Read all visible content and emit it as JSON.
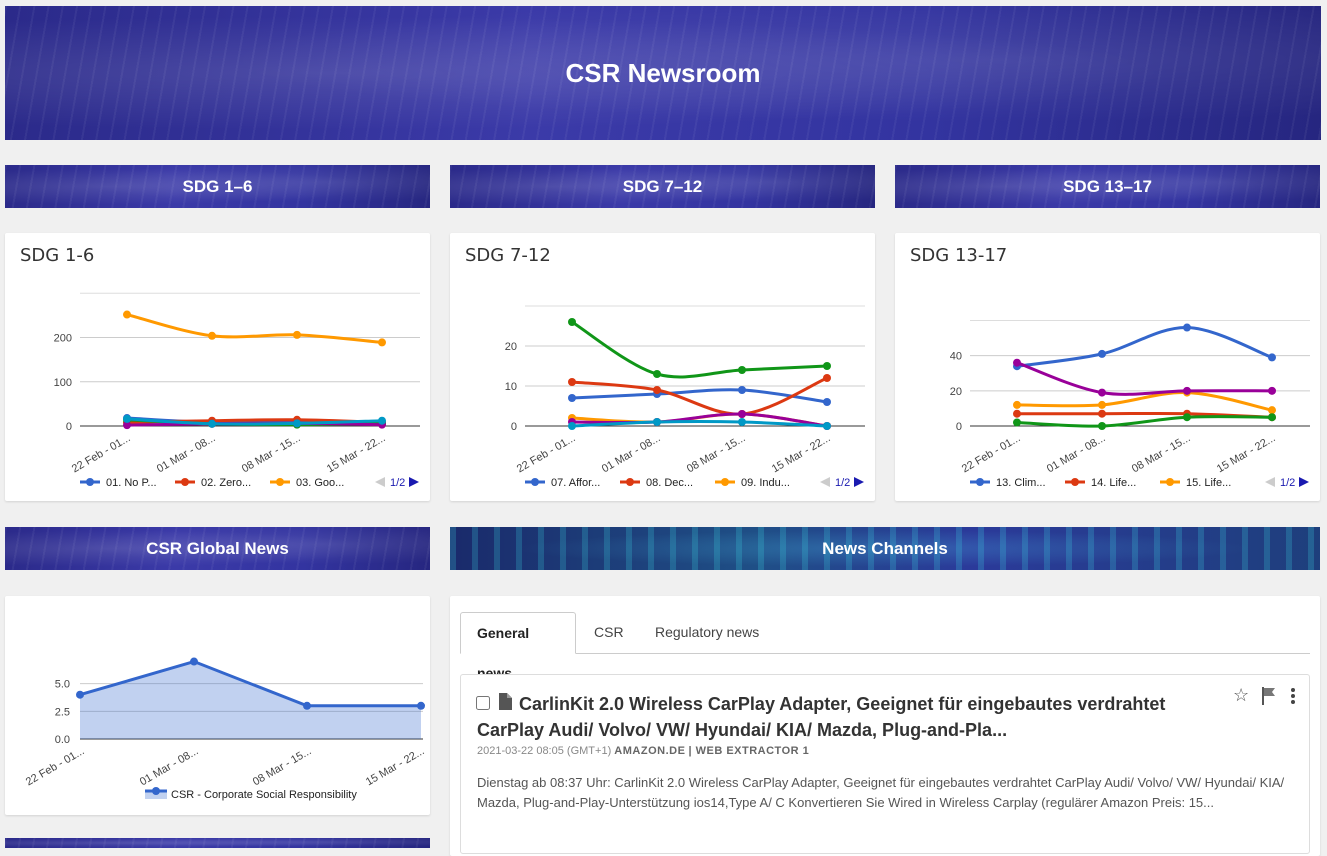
{
  "header": {
    "title": "CSR Newsroom"
  },
  "sections": {
    "sdg1": "SDG 1–6",
    "sdg2": "SDG 7–12",
    "sdg3": "SDG 13–17",
    "global": "CSR Global News",
    "channels": "News Channels"
  },
  "cards": {
    "c1": {
      "title": "SDG 1-6",
      "pager": "1/2"
    },
    "c2": {
      "title": "SDG 7-12",
      "pager": "1/2"
    },
    "c3": {
      "title": "SDG 13-17",
      "pager": "1/2"
    }
  },
  "chart_data": [
    {
      "type": "line",
      "title": "SDG 1-6",
      "categories": [
        "22 Feb - 01...",
        "01 Mar - 08...",
        "08 Mar - 15...",
        "15 Mar - 22..."
      ],
      "ylim": [
        0,
        260
      ],
      "yticks": [
        "0",
        "100",
        "200"
      ],
      "series": [
        {
          "name": "01. No P...",
          "color": "#3366cc",
          "values": [
            18,
            8,
            10,
            10
          ]
        },
        {
          "name": "02. Zero...",
          "color": "#dc3912",
          "values": [
            8,
            12,
            14,
            8
          ]
        },
        {
          "name": "03. Goo...",
          "color": "#ff9900",
          "values": [
            252,
            204,
            206,
            189
          ]
        },
        {
          "name": "",
          "color": "#109618",
          "values": [
            14,
            5,
            3,
            5
          ]
        },
        {
          "name": "",
          "color": "#990099",
          "values": [
            2,
            5,
            6,
            3
          ]
        },
        {
          "name": "",
          "color": "#0099c6",
          "values": [
            16,
            5,
            6,
            12
          ]
        }
      ]
    },
    {
      "type": "line",
      "title": "SDG 7-12",
      "categories": [
        "22 Feb - 01...",
        "01 Mar - 08...",
        "08 Mar - 15...",
        "15 Mar - 22..."
      ],
      "ylim": [
        0,
        28
      ],
      "yticks": [
        "0",
        "10",
        "20"
      ],
      "series": [
        {
          "name": "07. Affor...",
          "color": "#3366cc",
          "values": [
            7,
            8,
            9,
            6
          ]
        },
        {
          "name": "08. Dec...",
          "color": "#dc3912",
          "values": [
            11,
            9,
            3,
            12
          ]
        },
        {
          "name": "09. Indu...",
          "color": "#ff9900",
          "values": [
            2,
            1,
            3,
            0
          ]
        },
        {
          "name": "",
          "color": "#109618",
          "values": [
            26,
            13,
            14,
            15
          ]
        },
        {
          "name": "",
          "color": "#990099",
          "values": [
            1,
            1,
            3,
            0
          ]
        },
        {
          "name": "",
          "color": "#0099c6",
          "values": [
            0,
            1,
            1,
            0
          ]
        }
      ]
    },
    {
      "type": "line",
      "title": "SDG 13-17",
      "categories": [
        "22 Feb - 01...",
        "01 Mar - 08...",
        "08 Mar - 15...",
        "15 Mar - 22..."
      ],
      "ylim": [
        0,
        58
      ],
      "yticks": [
        "0",
        "20",
        "40"
      ],
      "series": [
        {
          "name": "13. Clim...",
          "color": "#3366cc",
          "values": [
            34,
            41,
            56,
            39
          ]
        },
        {
          "name": "14. Life...",
          "color": "#dc3912",
          "values": [
            7,
            7,
            7,
            5
          ]
        },
        {
          "name": "15. Life...",
          "color": "#ff9900",
          "values": [
            12,
            12,
            19,
            9
          ]
        },
        {
          "name": "",
          "color": "#109618",
          "values": [
            2,
            0,
            5,
            5
          ]
        },
        {
          "name": "",
          "color": "#990099",
          "values": [
            36,
            19,
            20,
            20
          ]
        }
      ]
    },
    {
      "type": "area",
      "title": "",
      "categories": [
        "22 Feb - 01...",
        "01 Mar - 08...",
        "08 Mar - 15...",
        "15 Mar - 22..."
      ],
      "ylim": [
        0,
        7.5
      ],
      "yticks": [
        "0.0",
        "2.5",
        "5.0"
      ],
      "series": [
        {
          "name": "CSR - Corporate Social Responsibility",
          "color": "#3366cc",
          "values": [
            4,
            7,
            3,
            3
          ]
        }
      ]
    }
  ],
  "news": {
    "tabs": [
      "General news",
      "CSR",
      "Regulatory news"
    ],
    "article": {
      "title": "CarlinKit 2.0 Wireless CarPlay Adapter, Geeignet für eingebautes verdrahtet CarPlay Audi/ Volvo/ VW/ Hyundai/ KIA/ Mazda, Plug-and-Pla...",
      "date": "2021-03-22 08:05",
      "tz": "(GMT+1)",
      "source": "AMAZON.DE",
      "extractor": "| WEB EXTRACTOR 1",
      "body": "Dienstag ab 08:37 Uhr: CarlinKit 2.0 Wireless CarPlay Adapter, Geeignet für eingebautes verdrahtet CarPlay Audi/ Volvo/ VW/ Hyundai/ KIA/ Mazda, Plug-and-Play-Unterstützung ios14,Type A/ C Konvertieren Sie Wired in Wireless Carplay (regulärer Amazon Preis: 15..."
    }
  }
}
